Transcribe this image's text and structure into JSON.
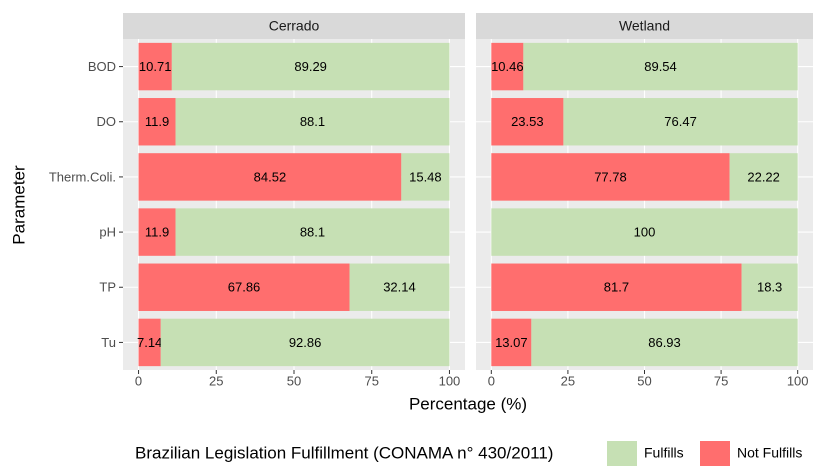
{
  "chart_data": [
    {
      "type": "bar",
      "title": "Cerrado",
      "categories": [
        "BOD",
        "DO",
        "Therm.Coli.",
        "pH",
        "TP",
        "Tu"
      ],
      "series": [
        {
          "name": "Not Fulfills",
          "color": "#ff6e6e",
          "values": [
            10.71,
            11.9,
            84.52,
            11.9,
            67.86,
            7.14
          ]
        },
        {
          "name": "Fulfills",
          "color": "#c6e0b4",
          "values": [
            89.29,
            88.1,
            15.48,
            88.1,
            32.14,
            92.86
          ]
        }
      ],
      "xlim": [
        -5,
        105
      ],
      "xticks": [
        0,
        25,
        50,
        75,
        100
      ]
    },
    {
      "type": "bar",
      "title": "Wetland",
      "categories": [
        "BOD",
        "DO",
        "Therm.Coli.",
        "pH",
        "TP",
        "Tu"
      ],
      "series": [
        {
          "name": "Not Fulfills",
          "color": "#ff6e6e",
          "values": [
            10.46,
            23.53,
            77.78,
            null,
            81.7,
            13.07
          ]
        },
        {
          "name": "Fulfills",
          "color": "#c6e0b4",
          "values": [
            89.54,
            76.47,
            22.22,
            100,
            18.3,
            86.93
          ]
        }
      ],
      "xlim": [
        -5,
        105
      ],
      "xticks": [
        0,
        25,
        50,
        75,
        100
      ]
    }
  ],
  "shared": {
    "x_label": "Percentage (%)",
    "y_label": "Parameter",
    "legend_title": "Brazilian Legislation Fulfillment (CONAMA n° 430/2011)"
  }
}
